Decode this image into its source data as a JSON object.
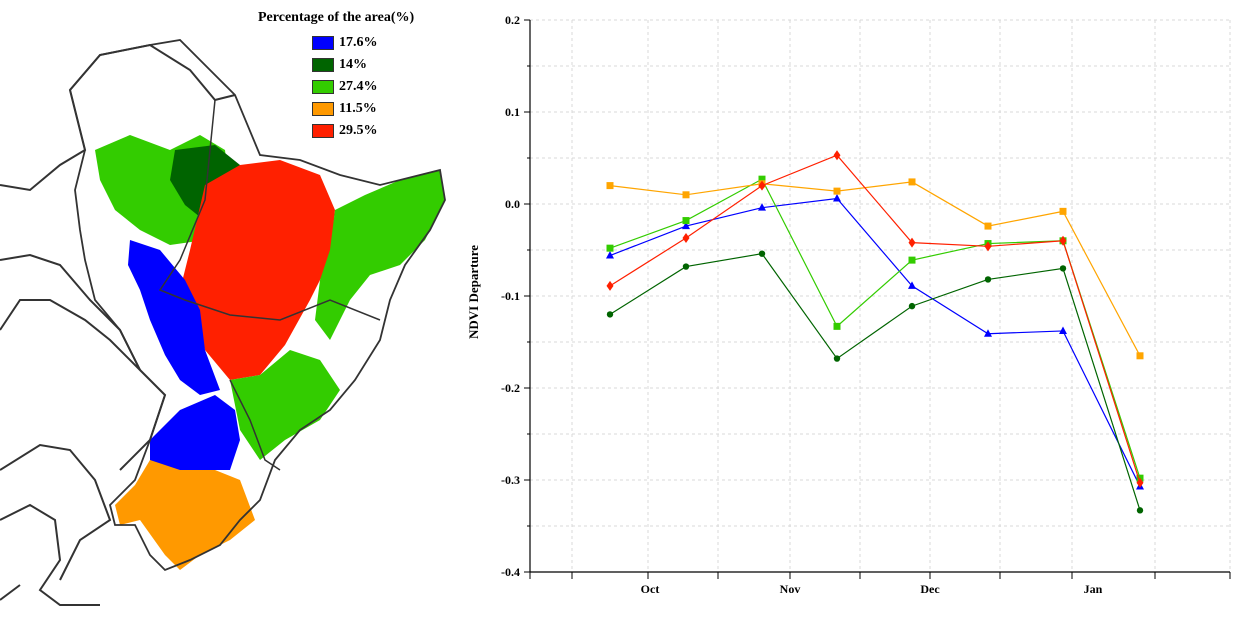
{
  "map": {
    "legend_title": "Percentage of the area(%)",
    "legend": [
      {
        "label": "17.6%",
        "color": "#0000ff"
      },
      {
        "label": "14%",
        "color": "#006400"
      },
      {
        "label": "27.4%",
        "color": "#33cc00"
      },
      {
        "label": "11.5%",
        "color": "#ff9900"
      },
      {
        "label": "29.5%",
        "color": "#ff2000"
      }
    ]
  },
  "chart_data": {
    "type": "line",
    "ylabel": "NDVI Departure",
    "xlabel": "",
    "ylim": [
      -0.4,
      0.2
    ],
    "yticks": [
      -0.4,
      -0.3,
      -0.2,
      -0.1,
      0.0,
      0.1,
      0.2
    ],
    "ytick_labels": [
      "-0.4",
      "-0.3",
      "-0.2",
      "-0.1",
      "0.0",
      "0.1",
      "0.2"
    ],
    "month_labels": [
      "Oct",
      "Nov",
      "Dec",
      "Jan"
    ],
    "grid": true,
    "series": [
      {
        "color": "#0000ff",
        "marker": "triangle",
        "values": [
          -0.056,
          -0.024,
          -0.004,
          0.006,
          -0.089,
          -0.141,
          -0.138,
          -0.307
        ]
      },
      {
        "color": "#006400",
        "marker": "circle",
        "values": [
          -0.12,
          -0.068,
          -0.054,
          -0.168,
          -0.111,
          -0.082,
          -0.07,
          -0.333
        ]
      },
      {
        "color": "#33cc00",
        "marker": "square",
        "values": [
          -0.048,
          -0.018,
          0.027,
          -0.133,
          -0.061,
          -0.043,
          -0.04,
          -0.298
        ]
      },
      {
        "color": "#ffa500",
        "marker": "square",
        "values": [
          0.02,
          0.01,
          0.022,
          0.014,
          0.024,
          -0.024,
          -0.008,
          -0.165
        ]
      },
      {
        "color": "#ff2000",
        "marker": "diamond",
        "values": [
          -0.089,
          -0.037,
          0.02,
          0.053,
          -0.042,
          -0.046,
          -0.04,
          -0.303
        ]
      }
    ]
  }
}
